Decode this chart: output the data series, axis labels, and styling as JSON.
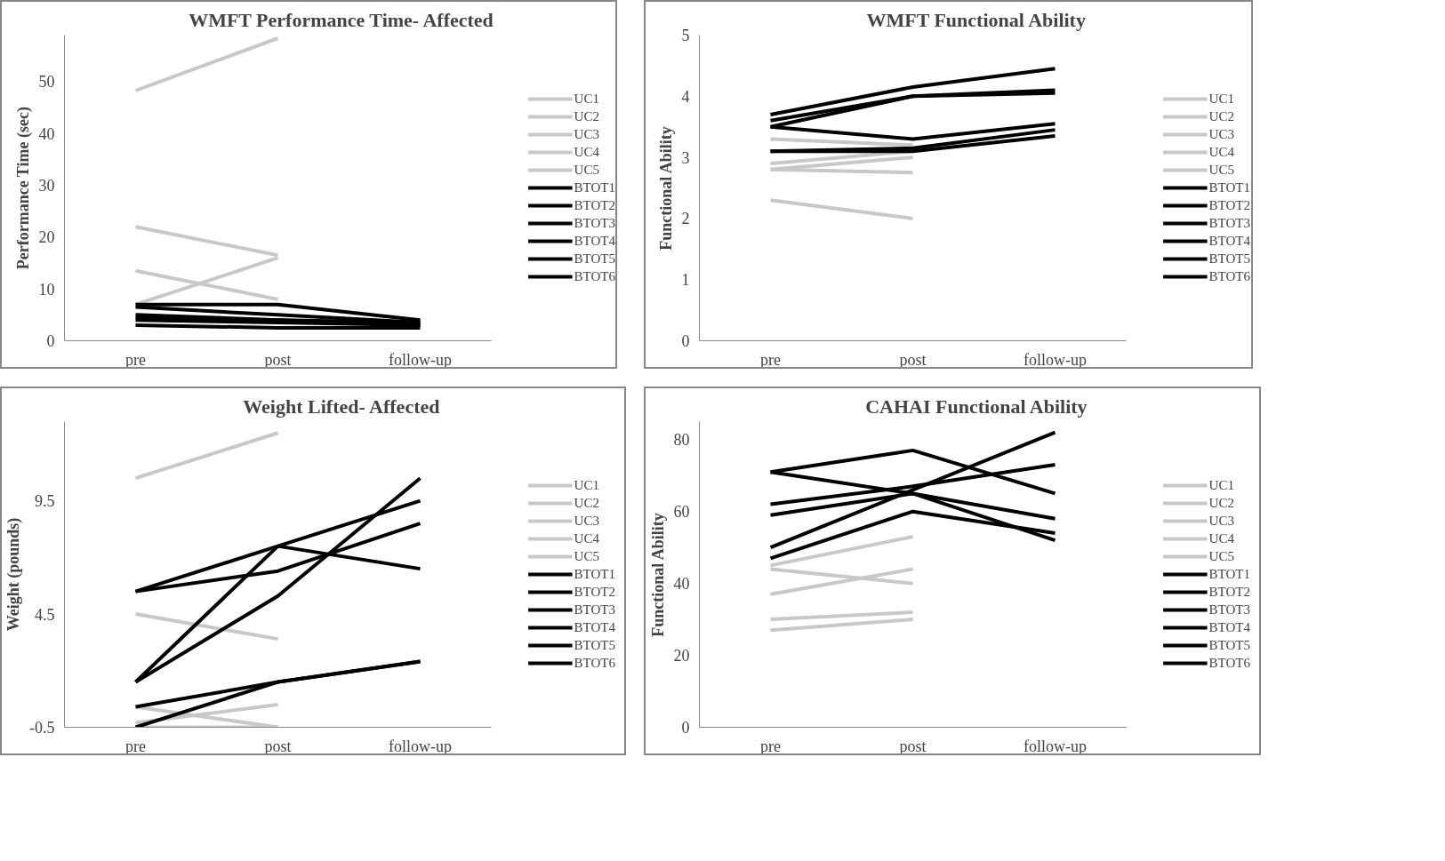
{
  "chart_data": [
    {
      "type": "line",
      "title": "WMFT Performance Time- Affected",
      "ylabel": "Performance Time (sec)",
      "categories": [
        "pre",
        "post",
        "follow-up"
      ],
      "ylim": [
        0,
        59
      ],
      "yticks": [
        0,
        10,
        20,
        30,
        40,
        50
      ],
      "grid": false,
      "legend": "right",
      "series": [
        {
          "name": "UC1",
          "color": "#c8c8c8",
          "values": [
            48.3,
            58.4,
            null
          ]
        },
        {
          "name": "UC2",
          "color": "#c8c8c8",
          "values": [
            22,
            16.5,
            null
          ]
        },
        {
          "name": "UC3",
          "color": "#c8c8c8",
          "values": [
            13.5,
            8,
            null
          ]
        },
        {
          "name": "UC4",
          "color": "#c8c8c8",
          "values": [
            7,
            16,
            null
          ]
        },
        {
          "name": "UC5",
          "color": "#c8c8c8",
          "values": [
            null,
            null,
            null
          ]
        },
        {
          "name": "BTOT1",
          "color": "#000000",
          "values": [
            7,
            7,
            4
          ]
        },
        {
          "name": "BTOT2",
          "color": "#000000",
          "values": [
            6.5,
            5,
            3.5
          ]
        },
        {
          "name": "BTOT3",
          "color": "#000000",
          "values": [
            4.5,
            4,
            3
          ]
        },
        {
          "name": "BTOT4",
          "color": "#000000",
          "values": [
            4,
            3.5,
            3
          ]
        },
        {
          "name": "BTOT5",
          "color": "#000000",
          "values": [
            3,
            2.5,
            2.5
          ]
        },
        {
          "name": "BTOT6",
          "color": "#000000",
          "values": [
            5,
            4,
            3.5
          ]
        }
      ]
    },
    {
      "type": "line",
      "title": "WMFT Functional Ability",
      "ylabel": "Functional Ability",
      "categories": [
        "pre",
        "post",
        "follow-up"
      ],
      "ylim": [
        0,
        5
      ],
      "yticks": [
        0,
        1,
        2,
        3,
        4,
        5
      ],
      "grid": false,
      "legend": "right",
      "series": [
        {
          "name": "UC1",
          "color": "#c8c8c8",
          "values": [
            3.3,
            3.2,
            null
          ]
        },
        {
          "name": "UC2",
          "color": "#c8c8c8",
          "values": [
            2.9,
            3.1,
            null
          ]
        },
        {
          "name": "UC3",
          "color": "#c8c8c8",
          "values": [
            2.8,
            3.0,
            null
          ]
        },
        {
          "name": "UC4",
          "color": "#c8c8c8",
          "values": [
            2.8,
            2.75,
            null
          ]
        },
        {
          "name": "UC5",
          "color": "#c8c8c8",
          "values": [
            2.3,
            2.0,
            null
          ]
        },
        {
          "name": "BTOT1",
          "color": "#000000",
          "values": [
            3.7,
            4.15,
            4.45
          ]
        },
        {
          "name": "BTOT2",
          "color": "#000000",
          "values": [
            3.6,
            4.0,
            4.05
          ]
        },
        {
          "name": "BTOT3",
          "color": "#000000",
          "values": [
            3.5,
            4.0,
            4.1
          ]
        },
        {
          "name": "BTOT4",
          "color": "#000000",
          "values": [
            3.5,
            3.3,
            3.55
          ]
        },
        {
          "name": "BTOT5",
          "color": "#000000",
          "values": [
            3.1,
            3.15,
            3.45
          ]
        },
        {
          "name": "BTOT6",
          "color": "#000000",
          "values": [
            3.1,
            3.1,
            3.35
          ]
        }
      ]
    },
    {
      "type": "line",
      "title": "Weight Lifted- Affected",
      "ylabel": "Weight (pounds)",
      "categories": [
        "pre",
        "post",
        "follow-up"
      ],
      "ylim": [
        -0.5,
        13
      ],
      "yticks": [
        -0.5,
        4.5,
        9.5
      ],
      "grid": false,
      "legend": "right",
      "series": [
        {
          "name": "UC1",
          "color": "#c8c8c8",
          "values": [
            10.5,
            12.5,
            null
          ]
        },
        {
          "name": "UC2",
          "color": "#c8c8c8",
          "values": [
            4.5,
            3.4,
            null
          ]
        },
        {
          "name": "UC3",
          "color": "#c8c8c8",
          "values": [
            0.4,
            -0.5,
            null
          ]
        },
        {
          "name": "UC4",
          "color": "#c8c8c8",
          "values": [
            -0.3,
            0.5,
            null
          ]
        },
        {
          "name": "UC5",
          "color": "#c8c8c8",
          "values": [
            -0.5,
            -0.5,
            null
          ]
        },
        {
          "name": "BTOT1",
          "color": "#000000",
          "values": [
            5.5,
            7.5,
            9.5
          ]
        },
        {
          "name": "BTOT2",
          "color": "#000000",
          "values": [
            5.5,
            6.4,
            8.5
          ]
        },
        {
          "name": "BTOT3",
          "color": "#000000",
          "values": [
            1.5,
            7.5,
            6.5
          ]
        },
        {
          "name": "BTOT4",
          "color": "#000000",
          "values": [
            1.5,
            5.3,
            10.5
          ]
        },
        {
          "name": "BTOT5",
          "color": "#000000",
          "values": [
            0.4,
            1.5,
            2.4
          ]
        },
        {
          "name": "BTOT6",
          "color": "#000000",
          "values": [
            -0.5,
            1.5,
            2.4
          ]
        }
      ]
    },
    {
      "type": "line",
      "title": "CAHAI Functional Ability",
      "ylabel": "Functional Ability",
      "categories": [
        "pre",
        "post",
        "follow-up"
      ],
      "ylim": [
        0,
        85
      ],
      "yticks": [
        0,
        20,
        40,
        60,
        80
      ],
      "grid": false,
      "legend": "right",
      "series": [
        {
          "name": "UC1",
          "color": "#c8c8c8",
          "values": [
            45,
            53,
            null
          ]
        },
        {
          "name": "UC2",
          "color": "#c8c8c8",
          "values": [
            44,
            40,
            null
          ]
        },
        {
          "name": "UC3",
          "color": "#c8c8c8",
          "values": [
            37,
            44,
            null
          ]
        },
        {
          "name": "UC4",
          "color": "#c8c8c8",
          "values": [
            30,
            32,
            null
          ]
        },
        {
          "name": "UC5",
          "color": "#c8c8c8",
          "values": [
            27,
            30,
            null
          ]
        },
        {
          "name": "BTOT1",
          "color": "#000000",
          "values": [
            71,
            77,
            65
          ]
        },
        {
          "name": "BTOT2",
          "color": "#000000",
          "values": [
            71,
            65,
            52
          ]
        },
        {
          "name": "BTOT3",
          "color": "#000000",
          "values": [
            62,
            67,
            73
          ]
        },
        {
          "name": "BTOT4",
          "color": "#000000",
          "values": [
            59,
            65,
            58
          ]
        },
        {
          "name": "BTOT5",
          "color": "#000000",
          "values": [
            50,
            66,
            82
          ]
        },
        {
          "name": "BTOT6",
          "color": "#000000",
          "values": [
            47,
            60,
            54
          ]
        }
      ]
    }
  ]
}
